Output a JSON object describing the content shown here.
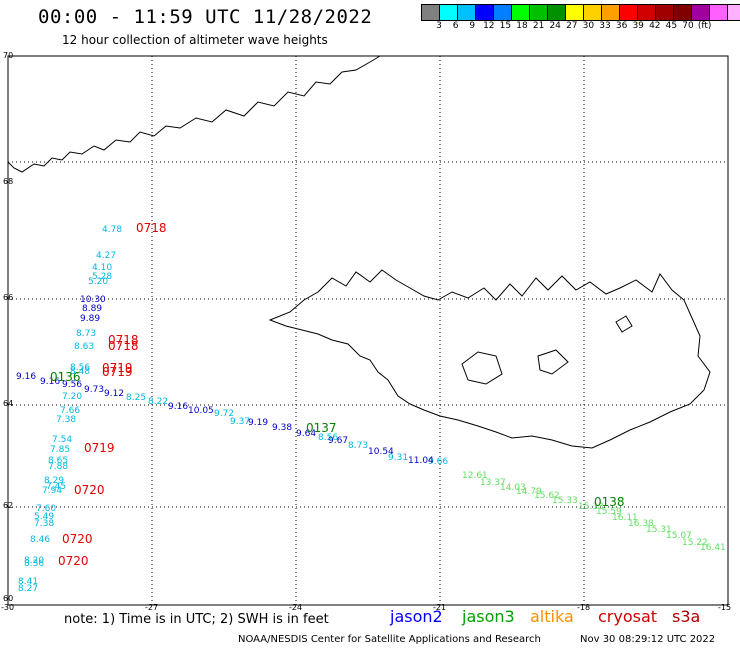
{
  "header": {
    "title": "00:00 - 11:59 UTC 11/28/2022",
    "subtitle": "12 hour collection of altimeter wave heights"
  },
  "color_scale": {
    "colors": [
      "#808080",
      "#00ffff",
      "#00bfff",
      "#0000ff",
      "#0080ff",
      "#00ff00",
      "#00c000",
      "#009000",
      "#ffff00",
      "#ffd000",
      "#ffa000",
      "#ff0000",
      "#d00000",
      "#a00000",
      "#800000",
      "#a000a0",
      "#ff60ff",
      "#ffb0ff",
      "#000000"
    ],
    "labels": [
      "3",
      "6",
      "9",
      "12",
      "15",
      "18",
      "21",
      "24",
      "27",
      "30",
      "33",
      "36",
      "39",
      "42",
      "45",
      "70",
      "(ft)"
    ]
  },
  "axes": {
    "lat_ticks": [
      "70",
      "68",
      "66",
      "64",
      "62",
      "60"
    ],
    "lon_ticks": [
      "-30",
      "-27",
      "-24",
      "-21",
      "-18",
      "-15"
    ]
  },
  "tracks": {
    "cyan_west": [
      "4.78",
      "4.27",
      "4.10",
      "5.28",
      "5.20",
      "8.73",
      "8.63",
      "8.56",
      "8.48",
      "7.20",
      "7.66",
      "7.38",
      "7.54",
      "7.85",
      "8.65",
      "7.88",
      "8.29",
      "7.45",
      "7.94",
      "7.60",
      "5.49",
      "7.38",
      "8.46",
      "8.20",
      "8.36",
      "8.41",
      "8.27"
    ],
    "blue_west": [
      "10.30",
      "8.89",
      "9.89",
      "9.16",
      "9.16",
      "9.56",
      "9.73",
      "9.12"
    ],
    "diag_cyan": [
      "8.25",
      "8.22",
      "9.72",
      "9.37",
      "8.56",
      "8.73",
      "9.31",
      "9.66"
    ],
    "diag_blue": [
      "9.16",
      "10.05",
      "9.19",
      "9.38",
      "9.64",
      "9.67",
      "10.54",
      "11.04"
    ],
    "diag_green": [
      "12.61",
      "13.37",
      "14.03",
      "14.79",
      "15.62",
      "15.33",
      "15.13",
      "15.59",
      "16.11",
      "16.38",
      "15.31",
      "15.07",
      "15.22",
      "16.41"
    ]
  },
  "times": {
    "red": [
      "0718",
      "0718",
      "0718",
      "0719",
      "0719",
      "0719",
      "0720",
      "0720",
      "0720"
    ],
    "green": [
      "0136",
      "0137",
      "0138"
    ]
  },
  "footer": {
    "note": "note: 1) Time is in UTC; 2) SWH is in feet",
    "legend": [
      {
        "label": "jason2",
        "color": "#0000ff"
      },
      {
        "label": "jason3",
        "color": "#00a000"
      },
      {
        "label": "altika",
        "color": "#ff9000"
      },
      {
        "label": "cryosat",
        "color": "#d00000"
      },
      {
        "label": "s3a",
        "color": "#b00000"
      }
    ],
    "credit": "NOAA/NESDIS Center for Satellite Applications and Research",
    "timestamp": "Nov 30 08:29:12 UTC 2022"
  }
}
